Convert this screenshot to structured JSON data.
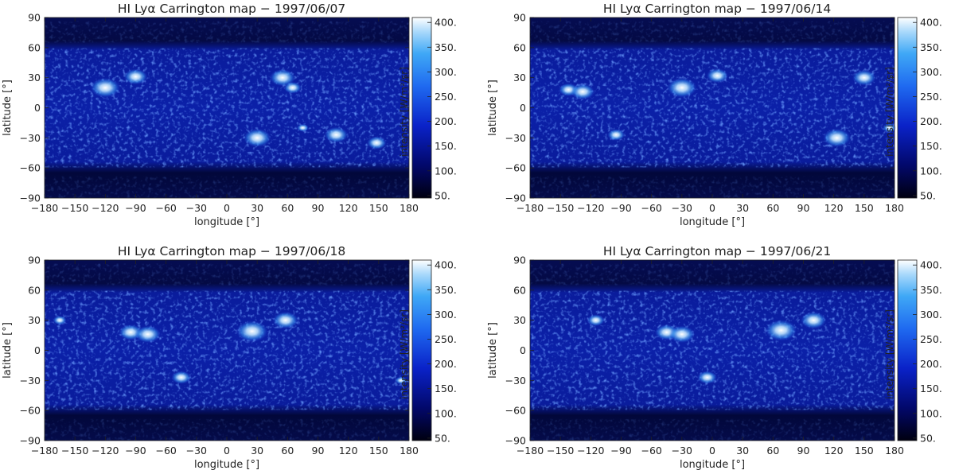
{
  "panels": [
    {
      "title": "HI Lyα Carrington map − 1997/06/07",
      "xlabel": "longitude [°]",
      "ylabel": "latitude [°]",
      "colorbar_label": "intensity [W/m²/sr]",
      "x_ticks": [
        "−180",
        "−150",
        "−120",
        "−90",
        "−60",
        "−30",
        "0",
        "30",
        "60",
        "90",
        "120",
        "150",
        "180"
      ],
      "y_ticks": [
        "90",
        "60",
        "30",
        "0",
        "−30",
        "−60",
        "−90"
      ],
      "cbar_ticks": [
        "400.",
        "350.",
        "300.",
        "250.",
        "200.",
        "150.",
        "100.",
        "50."
      ]
    },
    {
      "title": "HI Lyα Carrington map − 1997/06/14",
      "xlabel": "longitude [°]",
      "ylabel": "latitude [°]",
      "colorbar_label": "intensity [W/m²/sr]",
      "x_ticks": [
        "−180",
        "−150",
        "−120",
        "−90",
        "−60",
        "−30",
        "0",
        "30",
        "60",
        "90",
        "120",
        "150",
        "180"
      ],
      "y_ticks": [
        "90",
        "60",
        "30",
        "0",
        "−30",
        "−60",
        "−90"
      ],
      "cbar_ticks": [
        "400.",
        "350.",
        "300.",
        "250.",
        "200.",
        "150.",
        "100.",
        "50."
      ]
    },
    {
      "title": "HI Lyα Carrington map − 1997/06/18",
      "xlabel": "longitude [°]",
      "ylabel": "latitude [°]",
      "colorbar_label": "intensity [W/m²/sr]",
      "x_ticks": [
        "−180",
        "−150",
        "−120",
        "−90",
        "−60",
        "−30",
        "0",
        "30",
        "60",
        "90",
        "120",
        "150",
        "180"
      ],
      "y_ticks": [
        "90",
        "60",
        "30",
        "0",
        "−30",
        "−60",
        "−90"
      ],
      "cbar_ticks": [
        "400.",
        "350.",
        "300.",
        "250.",
        "200.",
        "150.",
        "100.",
        "50."
      ]
    },
    {
      "title": "HI Lyα Carrington map − 1997/06/21",
      "xlabel": "longitude [°]",
      "ylabel": "latitude [°]",
      "colorbar_label": "intensity [W/m²/sr]",
      "x_ticks": [
        "−180",
        "−150",
        "−120",
        "−90",
        "−60",
        "−30",
        "0",
        "30",
        "60",
        "90",
        "120",
        "150",
        "180"
      ],
      "y_ticks": [
        "90",
        "60",
        "30",
        "0",
        "−30",
        "−60",
        "−90"
      ],
      "cbar_ticks": [
        "400.",
        "350.",
        "300.",
        "250.",
        "200.",
        "150.",
        "100.",
        "50."
      ]
    }
  ],
  "chart_data": [
    {
      "type": "heatmap",
      "title": "HI Lyα Carrington map − 1997/06/07",
      "xlabel": "longitude [°]",
      "ylabel": "latitude [°]",
      "xlim": [
        -180,
        180
      ],
      "ylim": [
        -90,
        90
      ],
      "colorbar": {
        "label": "intensity [W/m²/sr]",
        "range": [
          50,
          400
        ],
        "colors": [
          "#000010",
          "#0a1fb0",
          "#2a8cf0",
          "#ffffff"
        ]
      },
      "bright_features": [
        {
          "lon": -120,
          "lat": 20,
          "intensity": 330
        },
        {
          "lon": -90,
          "lat": 31,
          "intensity": 300
        },
        {
          "lon": 55,
          "lat": 30,
          "intensity": 310
        },
        {
          "lon": 65,
          "lat": 20,
          "intensity": 270
        },
        {
          "lon": 30,
          "lat": -30,
          "intensity": 320
        },
        {
          "lon": 108,
          "lat": -27,
          "intensity": 300
        },
        {
          "lon": 148,
          "lat": -35,
          "intensity": 280
        },
        {
          "lon": 75,
          "lat": -20,
          "intensity": 240
        }
      ]
    },
    {
      "type": "heatmap",
      "title": "HI Lyα Carrington map − 1997/06/14",
      "xlabel": "longitude [°]",
      "ylabel": "latitude [°]",
      "xlim": [
        -180,
        180
      ],
      "ylim": [
        -90,
        90
      ],
      "colorbar": {
        "label": "intensity [W/m²/sr]",
        "range": [
          50,
          400
        ],
        "colors": [
          "#000010",
          "#0a1fb0",
          "#2a8cf0",
          "#ffffff"
        ]
      },
      "bright_features": [
        {
          "lon": -142,
          "lat": 18,
          "intensity": 280
        },
        {
          "lon": -128,
          "lat": 16,
          "intensity": 300
        },
        {
          "lon": -30,
          "lat": 20,
          "intensity": 330
        },
        {
          "lon": 5,
          "lat": 32,
          "intensity": 290
        },
        {
          "lon": 150,
          "lat": 30,
          "intensity": 300
        },
        {
          "lon": 123,
          "lat": -30,
          "intensity": 320
        },
        {
          "lon": -95,
          "lat": -27,
          "intensity": 270
        },
        {
          "lon": 175,
          "lat": -20,
          "intensity": 250
        }
      ]
    },
    {
      "type": "heatmap",
      "title": "HI Lyα Carrington map − 1997/06/18",
      "xlabel": "longitude [°]",
      "ylabel": "latitude [°]",
      "xlim": [
        -180,
        180
      ],
      "ylim": [
        -90,
        90
      ],
      "colorbar": {
        "label": "intensity [W/m²/sr]",
        "range": [
          50,
          400
        ],
        "colors": [
          "#000010",
          "#0a1fb0",
          "#2a8cf0",
          "#ffffff"
        ]
      },
      "bright_features": [
        {
          "lon": -95,
          "lat": 18,
          "intensity": 300
        },
        {
          "lon": -78,
          "lat": 16,
          "intensity": 310
        },
        {
          "lon": 25,
          "lat": 19,
          "intensity": 340
        },
        {
          "lon": 58,
          "lat": 30,
          "intensity": 310
        },
        {
          "lon": -45,
          "lat": -27,
          "intensity": 280
        },
        {
          "lon": -165,
          "lat": 30,
          "intensity": 250
        },
        {
          "lon": 172,
          "lat": -30,
          "intensity": 240
        }
      ]
    },
    {
      "type": "heatmap",
      "title": "HI Lyα Carrington map − 1997/06/21",
      "xlabel": "longitude [°]",
      "ylabel": "latitude [°]",
      "xlim": [
        -180,
        180
      ],
      "ylim": [
        -90,
        90
      ],
      "colorbar": {
        "label": "intensity [W/m²/sr]",
        "range": [
          50,
          400
        ],
        "colors": [
          "#000010",
          "#0a1fb0",
          "#2a8cf0",
          "#ffffff"
        ]
      },
      "bright_features": [
        {
          "lon": -115,
          "lat": 30,
          "intensity": 270
        },
        {
          "lon": -45,
          "lat": 18,
          "intensity": 300
        },
        {
          "lon": -30,
          "lat": 16,
          "intensity": 310
        },
        {
          "lon": 68,
          "lat": 20,
          "intensity": 340
        },
        {
          "lon": 100,
          "lat": 30,
          "intensity": 310
        },
        {
          "lon": -5,
          "lat": -27,
          "intensity": 280
        }
      ]
    }
  ]
}
